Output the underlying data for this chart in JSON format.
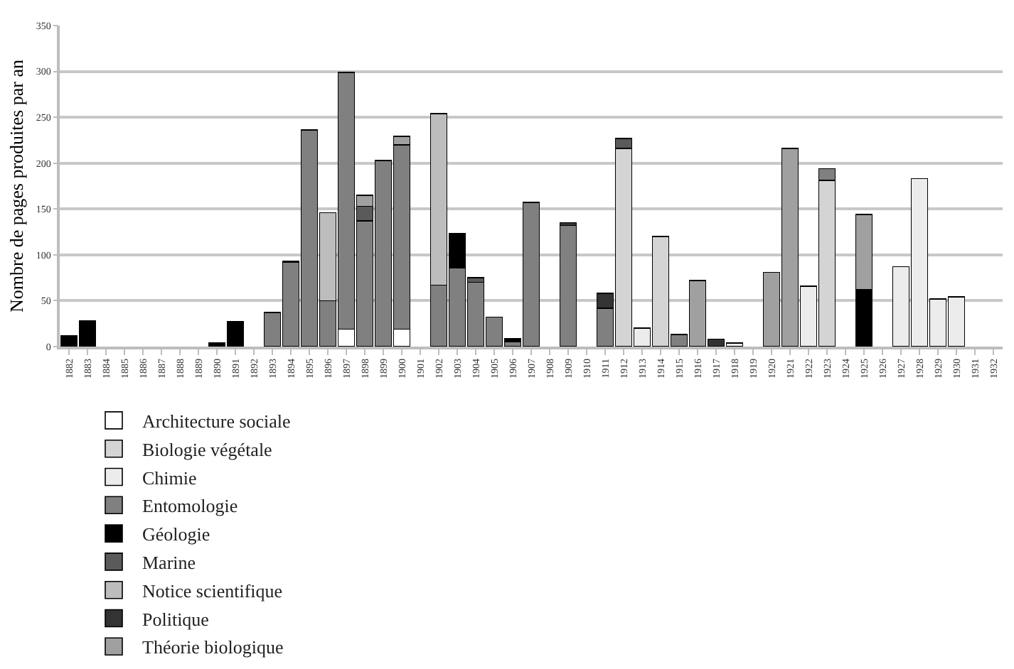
{
  "chart_data": {
    "type": "bar",
    "stacked": true,
    "ylabel": "Nombre de pages produites par an",
    "categories": [
      "1882",
      "1883",
      "1884",
      "1885",
      "1886",
      "1887",
      "1888",
      "1889",
      "1890",
      "1891",
      "1892",
      "1893",
      "1894",
      "1895",
      "1896",
      "1897",
      "1898",
      "1899",
      "1900",
      "1901",
      "1902",
      "1903",
      "1904",
      "1905",
      "1906",
      "1907",
      "1908",
      "1909",
      "1910",
      "1911",
      "1912",
      "1913",
      "1914",
      "1915",
      "1916",
      "1917",
      "1918",
      "1919",
      "1920",
      "1921",
      "1922",
      "1923",
      "1924",
      "1925",
      "1926",
      "1927",
      "1928",
      "1929",
      "1930",
      "1931",
      "1932"
    ],
    "ylim": [
      0,
      350
    ],
    "yticks": [
      0,
      50,
      100,
      150,
      200,
      250,
      300,
      350
    ],
    "grid": "y",
    "legend": "bottom",
    "series": [
      {
        "name": "Architecture sociale",
        "color": "#ffffff",
        "values": [
          null,
          null,
          null,
          null,
          null,
          null,
          null,
          null,
          null,
          null,
          null,
          null,
          null,
          null,
          null,
          19,
          null,
          null,
          19,
          null,
          null,
          null,
          null,
          null,
          null,
          null,
          null,
          null,
          null,
          null,
          null,
          null,
          null,
          null,
          null,
          null,
          null,
          null,
          null,
          null,
          null,
          null,
          null,
          null,
          null,
          null,
          null,
          null,
          null,
          null,
          null
        ]
      },
      {
        "name": "Biologie végétale",
        "color": "#d4d4d4",
        "values": [
          null,
          null,
          null,
          null,
          null,
          null,
          null,
          null,
          null,
          null,
          null,
          null,
          null,
          null,
          null,
          null,
          null,
          null,
          null,
          null,
          null,
          null,
          null,
          null,
          null,
          null,
          null,
          null,
          null,
          null,
          216,
          null,
          120,
          null,
          null,
          null,
          null,
          null,
          null,
          null,
          null,
          181,
          null,
          null,
          null,
          null,
          null,
          null,
          null,
          null,
          null
        ]
      },
      {
        "name": "Chimie",
        "color": "#ececec",
        "values": [
          null,
          null,
          null,
          null,
          null,
          null,
          null,
          null,
          null,
          null,
          null,
          null,
          null,
          null,
          null,
          null,
          null,
          null,
          null,
          null,
          null,
          null,
          null,
          null,
          null,
          null,
          null,
          null,
          null,
          null,
          null,
          20,
          null,
          null,
          null,
          null,
          4,
          null,
          null,
          null,
          66,
          null,
          null,
          null,
          null,
          87,
          183,
          52,
          54,
          null,
          null
        ]
      },
      {
        "name": "Entomologie",
        "color": "#808080",
        "values": [
          null,
          null,
          null,
          null,
          null,
          null,
          null,
          null,
          null,
          null,
          null,
          37,
          92,
          236,
          50,
          280,
          137,
          203,
          201,
          null,
          67,
          86,
          70,
          32,
          5,
          157,
          null,
          132,
          null,
          42,
          null,
          null,
          null,
          13,
          null,
          null,
          null,
          null,
          null,
          null,
          null,
          13,
          null,
          null,
          null,
          null,
          null,
          null,
          null,
          null,
          null
        ]
      },
      {
        "name": "Géologie",
        "color": "#000000",
        "values": [
          12,
          28,
          null,
          null,
          null,
          null,
          null,
          null,
          4,
          27,
          null,
          null,
          1,
          null,
          null,
          null,
          null,
          null,
          null,
          null,
          null,
          37,
          null,
          null,
          4,
          null,
          null,
          null,
          null,
          null,
          null,
          null,
          null,
          null,
          null,
          null,
          null,
          null,
          null,
          null,
          null,
          null,
          null,
          62,
          null,
          null,
          null,
          null,
          null,
          null,
          null
        ]
      },
      {
        "name": "Marine",
        "color": "#5a5a5a",
        "values": [
          null,
          null,
          null,
          null,
          null,
          null,
          null,
          null,
          null,
          null,
          null,
          null,
          null,
          null,
          null,
          null,
          16,
          null,
          null,
          null,
          null,
          null,
          5,
          null,
          null,
          null,
          null,
          null,
          null,
          null,
          11,
          null,
          null,
          null,
          null,
          null,
          null,
          null,
          null,
          null,
          null,
          null,
          null,
          null,
          null,
          null,
          null,
          null,
          null,
          null,
          null
        ]
      },
      {
        "name": "Notice scientifique",
        "color": "#bdbdbd",
        "values": [
          null,
          null,
          null,
          null,
          null,
          null,
          null,
          null,
          null,
          null,
          null,
          null,
          null,
          null,
          96,
          null,
          null,
          null,
          null,
          null,
          187,
          null,
          null,
          null,
          null,
          null,
          null,
          null,
          null,
          null,
          null,
          null,
          null,
          null,
          null,
          null,
          null,
          null,
          null,
          null,
          null,
          null,
          null,
          null,
          null,
          null,
          null,
          null,
          null,
          null,
          null
        ]
      },
      {
        "name": "Politique",
        "color": "#333333",
        "values": [
          null,
          null,
          null,
          null,
          null,
          null,
          null,
          null,
          null,
          null,
          null,
          null,
          null,
          null,
          null,
          null,
          null,
          null,
          null,
          null,
          null,
          null,
          null,
          null,
          null,
          null,
          null,
          3,
          null,
          16,
          null,
          null,
          null,
          null,
          null,
          8,
          null,
          null,
          null,
          null,
          null,
          null,
          null,
          null,
          null,
          null,
          null,
          null,
          null,
          null,
          null
        ]
      },
      {
        "name": "Théorie biologique",
        "color": "#a0a0a0",
        "values": [
          null,
          null,
          null,
          null,
          null,
          null,
          null,
          null,
          null,
          null,
          null,
          null,
          null,
          null,
          null,
          null,
          12,
          null,
          9,
          null,
          null,
          null,
          null,
          null,
          null,
          null,
          null,
          null,
          null,
          null,
          null,
          null,
          null,
          null,
          72,
          null,
          null,
          null,
          81,
          216,
          null,
          null,
          null,
          82,
          null,
          null,
          null,
          null,
          null,
          null,
          null
        ]
      }
    ]
  }
}
